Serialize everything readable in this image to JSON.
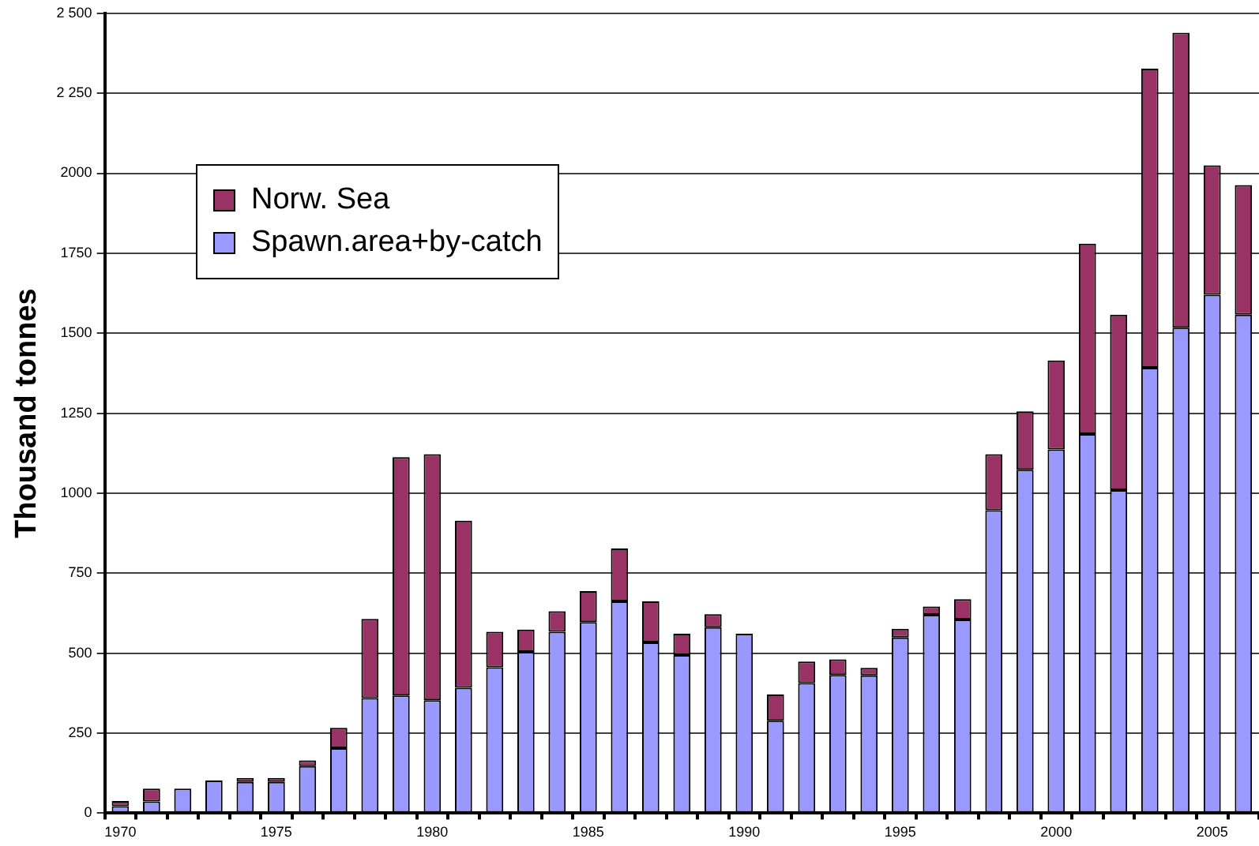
{
  "chart_data": {
    "type": "bar",
    "stacked": true,
    "ylabel": "Thousand tonnes",
    "categories": [
      "1970",
      null,
      null,
      null,
      null,
      "1975",
      null,
      null,
      null,
      null,
      "1980",
      null,
      null,
      null,
      null,
      "1985",
      null,
      null,
      null,
      null,
      "1990",
      null,
      null,
      null,
      null,
      "1995",
      null,
      null,
      null,
      null,
      "2000",
      null,
      null,
      null,
      null,
      "2005",
      null
    ],
    "series": [
      {
        "name": "Spawn.area+by-catch",
        "color": "#9999ff",
        "values": [
          22,
          37,
          77,
          102,
          98,
          98,
          147,
          203,
          360,
          368,
          353,
          392,
          456,
          504,
          567,
          597,
          662,
          534,
          494,
          581,
          561,
          289,
          407,
          432,
          431,
          549,
          620,
          605,
          947,
          1073,
          1137,
          1185,
          1010,
          1392,
          1517,
          1620,
          1558
        ]
      },
      {
        "name": "Norw. Sea",
        "color": "#993366",
        "values": [
          16,
          40,
          0,
          0,
          12,
          12,
          18,
          64,
          247,
          745,
          769,
          522,
          111,
          70,
          64,
          97,
          165,
          128,
          67,
          41,
          0,
          82,
          67,
          49,
          23,
          27,
          26,
          64,
          175,
          183,
          278,
          595,
          548,
          935,
          922,
          405,
          405
        ]
      }
    ],
    "ylim": [
      0,
      2500
    ],
    "yticks": [
      0,
      250,
      500,
      750,
      1000,
      1250,
      1500,
      1750,
      2000,
      {
        "value": 2250,
        "label": "2 250"
      },
      {
        "value": 2500,
        "label": "2 500"
      }
    ],
    "grid": "y",
    "legend": "top left"
  }
}
